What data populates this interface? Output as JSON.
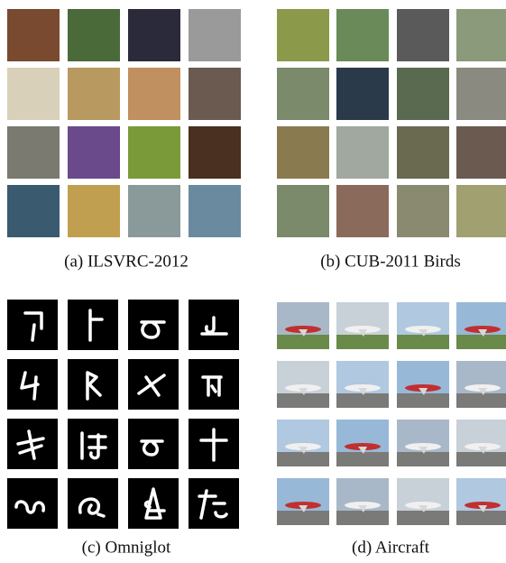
{
  "panels": [
    {
      "caption": "(a) ILSVRC-2012"
    },
    {
      "caption": "(b) CUB-2011 Birds"
    },
    {
      "caption": "(c) Omniglot"
    },
    {
      "caption": "(d) Aircraft"
    }
  ]
}
